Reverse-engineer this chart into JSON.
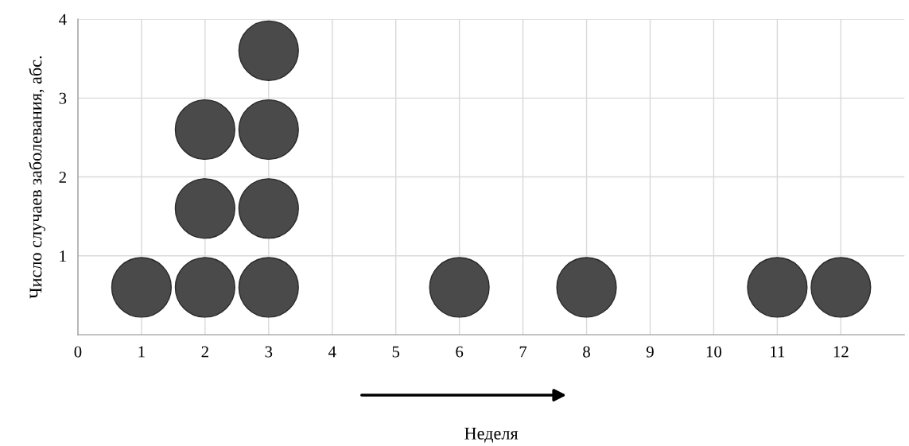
{
  "chart_data": {
    "type": "scatter",
    "xlabel": "Неделя",
    "ylabel": "Число случаев заболевания, абс.",
    "x": [
      1,
      2,
      2,
      2,
      3,
      3,
      3,
      3,
      6,
      8,
      11,
      12
    ],
    "values": [
      0.6,
      0.6,
      1.6,
      2.6,
      0.6,
      1.6,
      2.6,
      3.6,
      0.6,
      0.6,
      0.6,
      0.6
    ],
    "color": "#4a4a4a",
    "marker": "circle",
    "xlim": [
      0,
      13
    ],
    "xticks": [
      0,
      1,
      2,
      3,
      4,
      5,
      6,
      7,
      8,
      9,
      10,
      11,
      12
    ],
    "ylim": [
      0,
      4
    ],
    "yticks": [
      1,
      2,
      3,
      4
    ],
    "grid": true,
    "legend": false
  }
}
